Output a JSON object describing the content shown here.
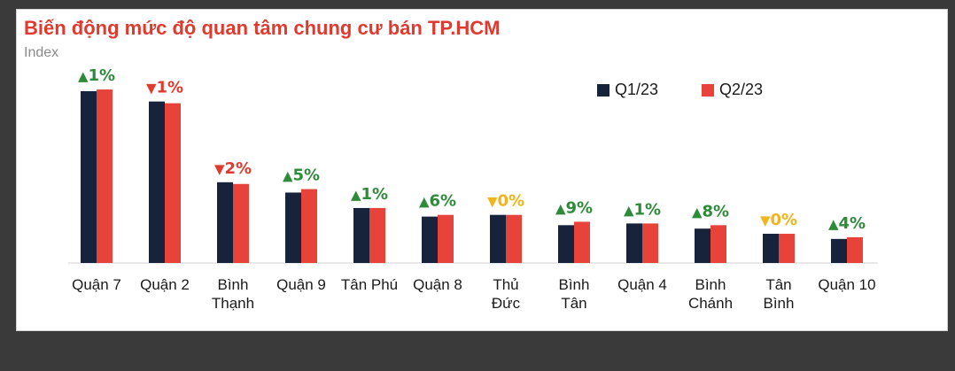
{
  "chart_data": {
    "type": "bar",
    "title": "Biến động mức độ quan tâm chung cư bán TP.HCM",
    "ylabel": "Index",
    "xlabel": "",
    "ylim": [
      0,
      100
    ],
    "grid": false,
    "legend_position": "top-right",
    "categories": [
      [
        "Quận 7"
      ],
      [
        "Quận 2"
      ],
      [
        "Bình",
        "Thạnh"
      ],
      [
        "Quận 9"
      ],
      [
        "Tân Phú"
      ],
      [
        "Quận 8"
      ],
      [
        "Thủ",
        "Đức"
      ],
      [
        "Bình",
        "Tân"
      ],
      [
        "Quận 4"
      ],
      [
        "Bình",
        "Chánh"
      ],
      [
        "Tân",
        "Bình"
      ],
      [
        "Quận 10"
      ]
    ],
    "series": [
      {
        "name": "Q1/23",
        "color": "#16233a",
        "values": [
          100,
          94,
          47,
          41,
          32,
          27,
          28,
          22,
          23,
          20,
          17,
          14
        ]
      },
      {
        "name": "Q2/23",
        "color": "#e8433a",
        "values": [
          101,
          93,
          46,
          43,
          32,
          28,
          28,
          24,
          23,
          22,
          17,
          15
        ]
      }
    ],
    "annotations": [
      {
        "direction": "up",
        "text": "1%"
      },
      {
        "direction": "down",
        "text": "1%"
      },
      {
        "direction": "down",
        "text": "2%"
      },
      {
        "direction": "up",
        "text": "5%"
      },
      {
        "direction": "up",
        "text": "1%"
      },
      {
        "direction": "up",
        "text": "6%"
      },
      {
        "direction": "flat",
        "text": "0%"
      },
      {
        "direction": "up",
        "text": "9%"
      },
      {
        "direction": "up",
        "text": "1%"
      },
      {
        "direction": "up",
        "text": "8%"
      },
      {
        "direction": "flat",
        "text": "0%"
      },
      {
        "direction": "up",
        "text": "4%"
      }
    ],
    "annotation_colors": {
      "up": "#2e8b3a",
      "down": "#e03a2f",
      "flat": "#f2b31c"
    },
    "annotation_glyphs": {
      "up": "▲",
      "down": "▼",
      "flat": "▼"
    }
  }
}
